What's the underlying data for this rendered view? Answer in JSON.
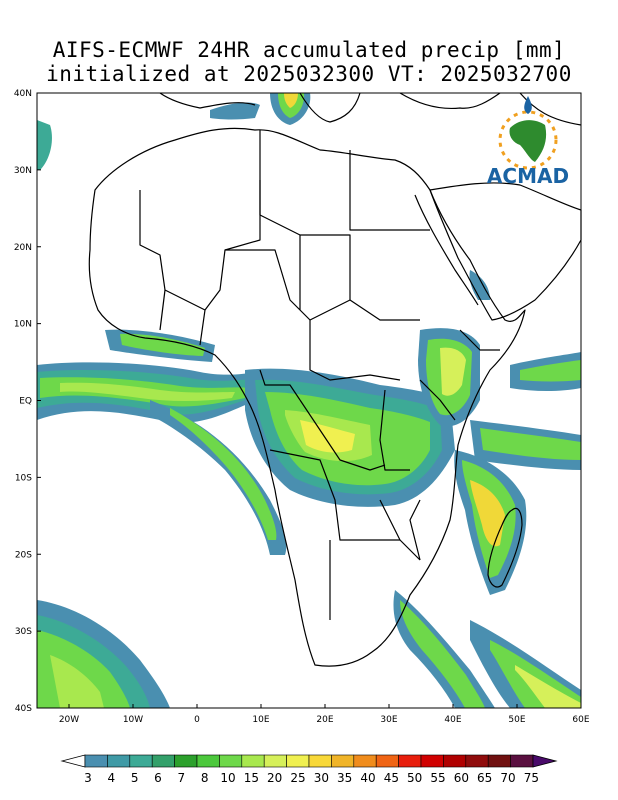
{
  "title": {
    "line1": "AIFS-ECMWF 24HR accumulated precip [mm]",
    "line2": "initialized at 2025032300 VT: 2025032700"
  },
  "logo": {
    "text": "ACMAD"
  },
  "axes": {
    "lat_labels": [
      "40N",
      "30N",
      "20N",
      "10N",
      "EQ",
      "10S",
      "20S",
      "30S",
      "40S"
    ],
    "lon_labels": [
      "20W",
      "10W",
      "0",
      "10E",
      "20E",
      "30E",
      "40E",
      "50E",
      "60E"
    ]
  },
  "colorbar": {
    "labels": [
      "3",
      "4",
      "5",
      "6",
      "7",
      "8",
      "10",
      "15",
      "20",
      "25",
      "30",
      "35",
      "40",
      "45",
      "50",
      "55",
      "60",
      "65",
      "70",
      "75"
    ],
    "colors": [
      "#4a8fb0",
      "#3f9aa6",
      "#3daa96",
      "#33a06a",
      "#2ca02c",
      "#4cc83c",
      "#6ed84a",
      "#a8e84e",
      "#d6f05a",
      "#f0f050",
      "#f8d838",
      "#f0b428",
      "#f08c1c",
      "#f06414",
      "#e81e0c",
      "#d00000",
      "#b00000",
      "#900c0c",
      "#701010",
      "#5a1040",
      "#4a0a6a"
    ]
  }
}
